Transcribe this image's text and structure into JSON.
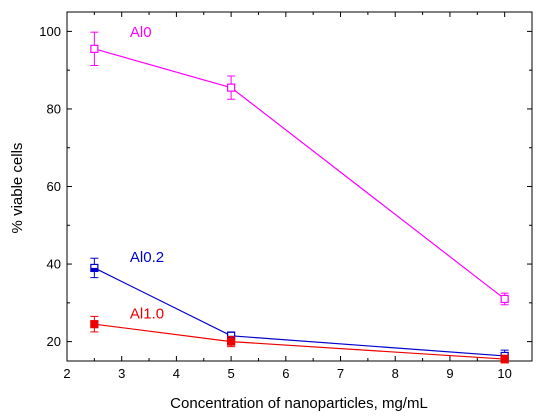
{
  "chart_data": {
    "type": "line",
    "xlabel": "Concentration of nanoparticles, mg/mL",
    "ylabel": "% viable cells",
    "xlim": [
      2,
      10.5
    ],
    "ylim": [
      15,
      105
    ],
    "xticks": [
      2,
      3,
      4,
      5,
      6,
      7,
      8,
      9,
      10
    ],
    "yticks": [
      20,
      40,
      60,
      80,
      100
    ],
    "grid": false,
    "x": [
      2.5,
      5,
      10
    ],
    "series": [
      {
        "name": "Al0",
        "color": "#ff00ff",
        "marker": "open-square",
        "values": [
          95.5,
          85.5,
          31
        ],
        "errors": [
          4.3,
          3,
          1.5
        ],
        "label_at": [
          3.15,
          98.5
        ]
      },
      {
        "name": "Al0.2",
        "color": "#0000cc",
        "marker": "half-filled-square",
        "values": [
          39,
          21.5,
          16.3
        ],
        "errors": [
          2.5,
          1,
          1.5
        ],
        "label_at": [
          3.15,
          40.5
        ]
      },
      {
        "name": "Al1.0",
        "color": "#ee0000",
        "marker": "filled-square",
        "values": [
          24.5,
          20,
          15.5
        ],
        "errors": [
          2,
          1.3,
          1
        ],
        "label_at": [
          3.15,
          26
        ]
      }
    ]
  }
}
